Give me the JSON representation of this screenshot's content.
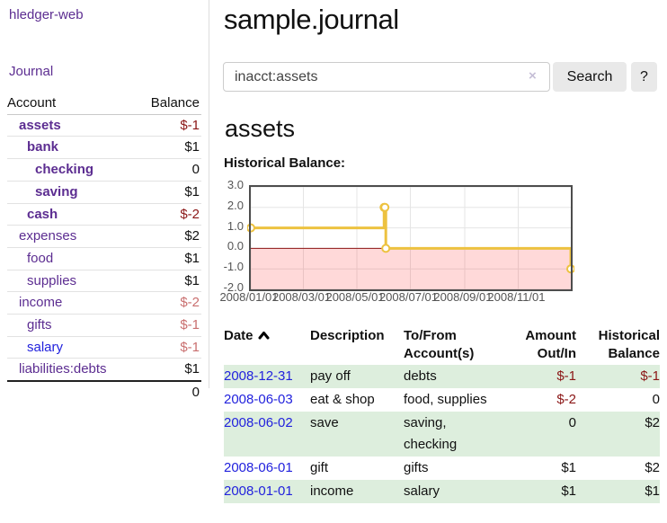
{
  "app": {
    "brand": "hledger-web"
  },
  "nav": {
    "journal": "Journal"
  },
  "sidebar": {
    "header": {
      "account": "Account",
      "balance": "Balance"
    },
    "accounts": [
      {
        "name": "assets",
        "balance": "$-1",
        "depth": 1,
        "matched": true,
        "tone": "neg-strong"
      },
      {
        "name": "bank",
        "balance": "$1",
        "depth": 2,
        "matched": true,
        "tone": "normal"
      },
      {
        "name": "checking",
        "balance": "0",
        "depth": 3,
        "matched": true,
        "tone": "normal"
      },
      {
        "name": "saving",
        "balance": "$1",
        "depth": 3,
        "matched": true,
        "tone": "normal"
      },
      {
        "name": "cash",
        "balance": "$-2",
        "depth": 2,
        "matched": true,
        "tone": "neg-strong"
      },
      {
        "name": "expenses",
        "balance": "$2",
        "depth": 1,
        "matched": false,
        "tone": "normal"
      },
      {
        "name": "food",
        "balance": "$1",
        "depth": 2,
        "matched": false,
        "tone": "normal"
      },
      {
        "name": "supplies",
        "balance": "$1",
        "depth": 2,
        "matched": false,
        "tone": "normal"
      },
      {
        "name": "income",
        "balance": "$-2",
        "depth": 1,
        "matched": false,
        "tone": "neg-soft"
      },
      {
        "name": "gifts",
        "balance": "$-1",
        "depth": 2,
        "matched": false,
        "tone": "neg-soft"
      },
      {
        "name": "salary",
        "balance": "$-1",
        "depth": 2,
        "matched": false,
        "tone": "neg-soft",
        "link_color": "blue"
      },
      {
        "name": "liabilities:debts",
        "balance": "$1",
        "depth": 1,
        "matched": false,
        "tone": "normal"
      }
    ],
    "total": "0"
  },
  "main": {
    "title": "sample.journal",
    "search": {
      "value": "inacct:assets",
      "clear_icon": "×",
      "search_button": "Search",
      "help_button": "?"
    },
    "account_heading": "assets",
    "chart_heading": "Historical Balance:"
  },
  "chart_data": {
    "type": "line",
    "title": "Historical Balance:",
    "step": true,
    "series": [
      {
        "name": "$",
        "points": [
          [
            "2008-01-01",
            1
          ],
          [
            "2008-06-01",
            2
          ],
          [
            "2008-06-02",
            2
          ],
          [
            "2008-06-03",
            0
          ],
          [
            "2008-12-31",
            -1
          ]
        ]
      }
    ],
    "x_range": [
      "2008-01-01",
      "2008-12-31"
    ],
    "ylim": [
      -2,
      3
    ],
    "y_ticks": [
      "3.0",
      "2.0",
      "1.0",
      "0.0",
      "-1.0",
      "-2.0"
    ],
    "x_ticks": [
      "2008/01/01",
      "2008/03/01",
      "2008/05/01",
      "2008/07/01",
      "2008/09/01",
      "2008/11/01"
    ],
    "legend": {
      "label": "$",
      "position": "top-right"
    },
    "grid": true,
    "colors": {
      "line": "#EDC240",
      "point_fill": "#ffffff",
      "negative_fill": "rgba(255,0,0,0.15)",
      "zero_line": "#8e1616",
      "gridline": "#e5e5e5",
      "border": "#4d4d4d"
    }
  },
  "register": {
    "headers": {
      "date": "Date",
      "description": "Description",
      "accounts": "To/From Account(s)",
      "amount": "Amount Out/In",
      "balance": "Historical Balance"
    },
    "rows": [
      {
        "date": "2008-12-31",
        "description": "pay off",
        "accounts": "debts",
        "amount": "$-1",
        "balance": "$-1"
      },
      {
        "date": "2008-06-03",
        "description": "eat & shop",
        "accounts": "food, supplies",
        "amount": "$-2",
        "balance": "0"
      },
      {
        "date": "2008-06-02",
        "description": "save",
        "accounts": "saving, checking",
        "amount": "0",
        "balance": "$2"
      },
      {
        "date": "2008-06-01",
        "description": "gift",
        "accounts": "gifts",
        "amount": "$1",
        "balance": "$2"
      },
      {
        "date": "2008-01-01",
        "description": "income",
        "accounts": "salary",
        "amount": "$1",
        "balance": "$1"
      }
    ]
  }
}
